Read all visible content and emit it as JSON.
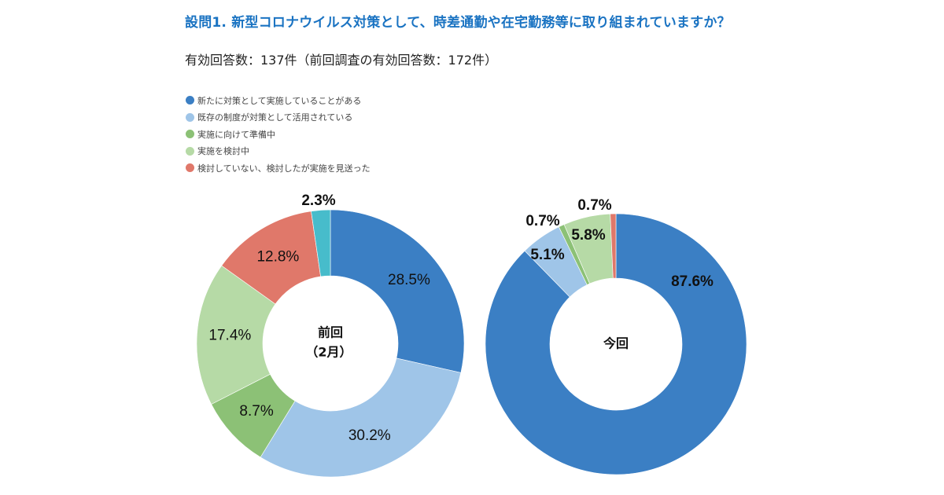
{
  "header": {
    "title": "設問1. 新型コロナウイルス対策として、時差通勤や在宅勤務等に取り組まれていますか？",
    "subtitle": "有効回答数：137件（前回調査の有効回答数：172件）"
  },
  "legend": [
    {
      "label": "新たに対策として実施していることがある",
      "color": "#3b7fc4"
    },
    {
      "label": "既存の制度が対策として活用されている",
      "color": "#9fc5e8"
    },
    {
      "label": "実施に向けて準備中",
      "color": "#8cc176"
    },
    {
      "label": "実施を検討中",
      "color": "#b6daa6"
    },
    {
      "label": "検討していない、検討したが実施を見送った",
      "color": "#e0786a"
    }
  ],
  "chart_data": [
    {
      "type": "pie",
      "variant": "donut",
      "center_label_line1": "前回",
      "center_label_line2": "（2月）",
      "slices": [
        {
          "category": "新たに対策として実施していることがある",
          "value": 28.5,
          "label": "28.5%",
          "color": "#3b7fc4"
        },
        {
          "category": "既存の制度が対策として活用されている",
          "value": 30.2,
          "label": "30.2%",
          "color": "#9fc5e8"
        },
        {
          "category": "実施に向けて準備中",
          "value": 8.7,
          "label": "8.7%",
          "color": "#8cc176"
        },
        {
          "category": "実施を検討中",
          "value": 17.4,
          "label": "17.4%",
          "color": "#b6daa6"
        },
        {
          "category": "検討していない、検討したが実施を見送った",
          "value": 12.8,
          "label": "12.8%",
          "color": "#e0786a"
        },
        {
          "category": "",
          "value": 2.3,
          "label": "2.3%",
          "color": "#47bccb"
        }
      ]
    },
    {
      "type": "pie",
      "variant": "donut",
      "center_label_line1": "今回",
      "center_label_line2": "",
      "slices": [
        {
          "category": "新たに対策として実施していることがある",
          "value": 87.6,
          "label": "87.6%",
          "color": "#3b7fc4"
        },
        {
          "category": "既存の制度が対策として活用されている",
          "value": 5.1,
          "label": "5.1%",
          "color": "#9fc5e8"
        },
        {
          "category": "実施に向けて準備中",
          "value": 0.7,
          "label": "0.7%",
          "color": "#8cc176"
        },
        {
          "category": "実施を検討中",
          "value": 5.8,
          "label": "5.8%",
          "color": "#b6daa6"
        },
        {
          "category": "検討していない、検討したが実施を見送った",
          "value": 0.7,
          "label": "0.7%",
          "color": "#e0786a"
        }
      ]
    }
  ]
}
